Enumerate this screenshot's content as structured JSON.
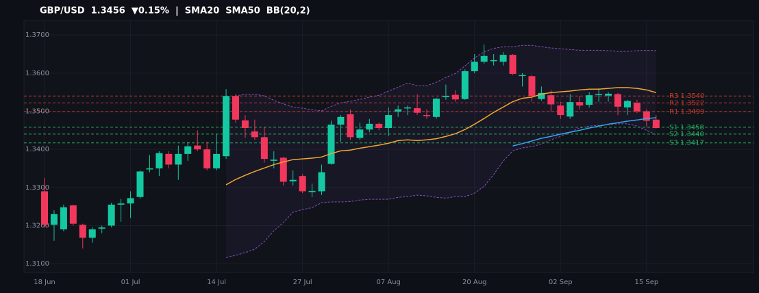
{
  "chart_data": {
    "type": "candlestick",
    "title": "GBP/USD  1.3456  ▼0.15%  |  SMA20  SMA50  BB(20,2)",
    "categories": [
      "18 Jun",
      null,
      null,
      null,
      null,
      null,
      null,
      null,
      null,
      "01 Jul",
      null,
      null,
      null,
      null,
      null,
      null,
      null,
      null,
      "14 Jul",
      null,
      null,
      null,
      null,
      null,
      null,
      null,
      null,
      "27 Jul",
      null,
      null,
      null,
      null,
      null,
      null,
      null,
      null,
      "07 Aug",
      null,
      null,
      null,
      null,
      null,
      null,
      null,
      null,
      "20 Aug",
      null,
      null,
      null,
      null,
      null,
      null,
      null,
      null,
      "02 Sep",
      null,
      null,
      null,
      null,
      null,
      null,
      null,
      null,
      "15 Sep",
      null
    ],
    "open": [
      1.329,
      1.3202,
      1.319,
      1.3253,
      1.3202,
      1.3168,
      1.3192,
      1.32,
      1.3255,
      1.3258,
      1.3275,
      1.3348,
      1.335,
      1.3388,
      1.336,
      1.3388,
      1.341,
      1.34,
      1.335,
      1.3382,
      1.354,
      1.3476,
      1.3447,
      1.3432,
      1.337,
      1.3378,
      1.3316,
      1.333,
      1.3288,
      1.329,
      1.3362,
      1.3465,
      1.3492,
      1.343,
      1.3452,
      1.3467,
      1.3456,
      1.3499,
      1.3508,
      1.3508,
      1.349,
      1.3485,
      1.3537,
      1.3543,
      1.3532,
      1.3605,
      1.363,
      1.3632,
      1.363,
      1.3648,
      1.3593,
      1.3592,
      1.3532,
      1.3542,
      1.3515,
      1.3486,
      1.3524,
      1.3517,
      1.3543,
      1.3541,
      1.3545,
      1.351,
      1.3522,
      1.35,
      1.3478
    ],
    "high": [
      1.3325,
      1.324,
      1.3255,
      1.3255,
      1.3205,
      1.3195,
      1.32,
      1.326,
      1.327,
      1.329,
      1.3345,
      1.3385,
      1.3395,
      1.3395,
      1.341,
      1.342,
      1.345,
      1.342,
      1.344,
      1.3558,
      1.3545,
      1.349,
      1.3478,
      1.346,
      1.3395,
      1.338,
      1.3345,
      1.3335,
      1.331,
      1.336,
      1.3475,
      1.349,
      1.3505,
      1.347,
      1.348,
      1.347,
      1.351,
      1.3515,
      1.3515,
      1.3545,
      1.3505,
      1.3535,
      1.357,
      1.3555,
      1.361,
      1.365,
      1.3675,
      1.365,
      1.3655,
      1.365,
      1.36,
      1.3595,
      1.3565,
      1.3555,
      1.3525,
      1.3545,
      1.354,
      1.355,
      1.356,
      1.355,
      1.3548,
      1.353,
      1.353,
      1.3505,
      1.349
    ],
    "low": [
      1.3195,
      1.316,
      1.3185,
      1.32,
      1.314,
      1.3155,
      1.318,
      1.3195,
      1.321,
      1.322,
      1.327,
      1.334,
      1.333,
      1.335,
      1.332,
      1.337,
      1.3395,
      1.3345,
      1.3345,
      1.3375,
      1.347,
      1.343,
      1.3425,
      1.3365,
      1.335,
      1.3305,
      1.3305,
      1.3285,
      1.3275,
      1.328,
      1.336,
      1.342,
      1.3425,
      1.3425,
      1.3445,
      1.345,
      1.3435,
      1.3485,
      1.349,
      1.349,
      1.348,
      1.348,
      1.353,
      1.3525,
      1.353,
      1.36,
      1.3625,
      1.362,
      1.362,
      1.3595,
      1.3565,
      1.3525,
      1.3528,
      1.35,
      1.348,
      1.348,
      1.3505,
      1.351,
      1.3525,
      1.3525,
      1.349,
      1.349,
      1.3495,
      1.346,
      1.3455
    ],
    "close": [
      1.3202,
      1.323,
      1.3248,
      1.3205,
      1.3168,
      1.319,
      1.3195,
      1.3255,
      1.3258,
      1.3272,
      1.3342,
      1.335,
      1.339,
      1.336,
      1.3388,
      1.3408,
      1.34,
      1.335,
      1.3388,
      1.354,
      1.3478,
      1.3456,
      1.3432,
      1.3375,
      1.3373,
      1.3315,
      1.332,
      1.329,
      1.3291,
      1.334,
      1.3465,
      1.3485,
      1.3432,
      1.3452,
      1.3467,
      1.3456,
      1.349,
      1.3505,
      1.351,
      1.3496,
      1.3487,
      1.3533,
      1.354,
      1.3531,
      1.3605,
      1.363,
      1.3645,
      1.3634,
      1.3648,
      1.3598,
      1.3595,
      1.354,
      1.3548,
      1.3518,
      1.349,
      1.3524,
      1.3515,
      1.3542,
      1.3545,
      1.3546,
      1.3512,
      1.3527,
      1.35,
      1.3475,
      1.3456
    ],
    "up_color": "#14c9a2",
    "down_color": "#f2375c",
    "lines": [
      {
        "color": "#f0a830",
        "values": [
          null,
          null,
          null,
          null,
          null,
          null,
          null,
          null,
          null,
          null,
          null,
          null,
          null,
          null,
          null,
          null,
          null,
          null,
          null,
          1.3307,
          1.3321,
          1.3332,
          1.3342,
          1.3351,
          1.336,
          1.3367,
          1.3373,
          1.3375,
          1.3377,
          1.338,
          1.3389,
          1.3396,
          1.3398,
          1.3403,
          1.3407,
          1.3411,
          1.3416,
          1.3423,
          1.3425,
          1.3423,
          1.3425,
          1.3428,
          1.3434,
          1.3441,
          1.3452,
          1.3466,
          1.3481,
          1.3497,
          1.3511,
          1.3525,
          1.3534,
          1.3537,
          1.3545,
          1.3549,
          1.3551,
          1.3553,
          1.3556,
          1.3558,
          1.3558,
          1.356,
          1.3562,
          1.3562,
          1.356,
          1.3556,
          1.3549
        ]
      },
      {
        "color": "#2ea8f0",
        "values": [
          null,
          null,
          null,
          null,
          null,
          null,
          null,
          null,
          null,
          null,
          null,
          null,
          null,
          null,
          null,
          null,
          null,
          null,
          null,
          null,
          null,
          null,
          null,
          null,
          null,
          null,
          null,
          null,
          null,
          null,
          null,
          null,
          null,
          null,
          null,
          null,
          null,
          null,
          null,
          null,
          null,
          null,
          null,
          null,
          null,
          null,
          null,
          null,
          null,
          1.3409,
          1.3415,
          1.3422,
          1.3429,
          1.3434,
          1.344,
          1.3445,
          1.345,
          1.3456,
          1.3461,
          1.3466,
          1.347,
          1.3474,
          1.3477,
          1.3481,
          1.3483
        ]
      }
    ],
    "bands": {
      "color": "#8a4fc0",
      "upper": [
        null,
        null,
        null,
        null,
        null,
        null,
        null,
        null,
        null,
        null,
        null,
        null,
        null,
        null,
        null,
        null,
        null,
        null,
        null,
        1.3526,
        1.354,
        1.3545,
        1.3545,
        1.354,
        1.3529,
        1.3519,
        1.3511,
        1.3508,
        1.3504,
        1.3501,
        1.3513,
        1.3522,
        1.3526,
        1.3531,
        1.3537,
        1.3542,
        1.3553,
        1.3563,
        1.3574,
        1.3567,
        1.3567,
        1.3576,
        1.3589,
        1.3599,
        1.3619,
        1.364,
        1.3656,
        1.3665,
        1.3669,
        1.3669,
        1.3673,
        1.3673,
        1.3669,
        1.3666,
        1.3664,
        1.3662,
        1.366,
        1.366,
        1.366,
        1.3659,
        1.3657,
        1.3657,
        1.3659,
        1.366,
        1.3659
      ],
      "lower": [
        null,
        null,
        null,
        null,
        null,
        null,
        null,
        null,
        null,
        null,
        null,
        null,
        null,
        null,
        null,
        null,
        null,
        null,
        null,
        1.3116,
        1.3122,
        1.3129,
        1.3138,
        1.3158,
        1.3186,
        1.3208,
        1.3235,
        1.3242,
        1.3247,
        1.326,
        1.3262,
        1.3262,
        1.3263,
        1.3267,
        1.3269,
        1.3269,
        1.3269,
        1.3274,
        1.3276,
        1.328,
        1.3278,
        1.3274,
        1.3272,
        1.3276,
        1.3276,
        1.3285,
        1.3303,
        1.3334,
        1.3369,
        1.3396,
        1.3404,
        1.3407,
        1.3414,
        1.3425,
        1.3434,
        1.3445,
        1.3456,
        1.3461,
        1.3463,
        1.3465,
        1.3467,
        1.3467,
        1.3461,
        1.345,
        1.3438
      ]
    },
    "levels": [
      {
        "label": "R3 1.3540",
        "value": 1.354,
        "color": "#c0392b"
      },
      {
        "label": "R2 1.3522",
        "value": 1.3522,
        "color": "#c0392b"
      },
      {
        "label": "R1 1.3499",
        "value": 1.3499,
        "color": "#c0392b"
      },
      {
        "label": "S1 1.3458",
        "value": 1.3458,
        "color": "#27ae60"
      },
      {
        "label": "S2 1.3440",
        "value": 1.344,
        "color": "#27ae60"
      },
      {
        "label": "S3 1.3417",
        "value": 1.3417,
        "color": "#27ae60"
      }
    ],
    "ylim": [
      1.3077,
      1.3738
    ],
    "yticks": [
      {
        "value": 1.31,
        "label": "1.3100"
      },
      {
        "value": 1.32,
        "label": "1.3200"
      },
      {
        "value": 1.33,
        "label": "1.3300"
      },
      {
        "value": 1.34,
        "label": "1.3400"
      },
      {
        "value": 1.35,
        "label": "1.3500"
      },
      {
        "value": 1.36,
        "label": "1.3600"
      },
      {
        "value": 1.37,
        "label": "1.3700"
      }
    ],
    "grid": true
  }
}
